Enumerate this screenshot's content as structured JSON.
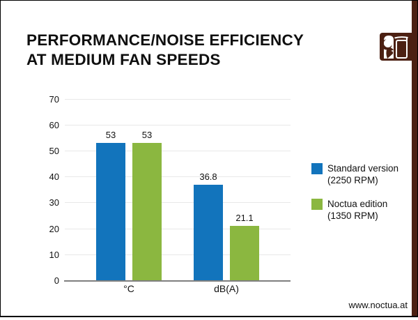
{
  "colors": {
    "brand_brown": "#4c2012",
    "bar_blue": "#1274bc",
    "bar_green": "#8bb740",
    "gridline": "#e8e8e8",
    "axis_line": "#7f7f7f"
  },
  "header": {
    "title_line1": "PERFORMANCE/NOISE EFFICIENCY",
    "title_line2": "AT MEDIUM FAN SPEEDS",
    "logo": "noctua-owl-logo"
  },
  "legend": {
    "items": [
      {
        "line1": "Standard version",
        "line2": "(2250 RPM)",
        "color": "#1274bc"
      },
      {
        "line1": "Noctua edition",
        "line2": "(1350 RPM)",
        "color": "#8bb740"
      }
    ]
  },
  "footer": {
    "website": "www.noctua.at"
  },
  "chart_data": {
    "type": "bar",
    "title": "PERFORMANCE/NOISE EFFICIENCY AT MEDIUM FAN SPEEDS",
    "categories": [
      "°C",
      "dB(A)"
    ],
    "series": [
      {
        "name": "Standard version (2250 RPM)",
        "color": "#1274bc",
        "values": [
          53,
          36.8
        ]
      },
      {
        "name": "Noctua edition (1350 RPM)",
        "color": "#8bb740",
        "values": [
          53,
          21.1
        ]
      }
    ],
    "data_labels": [
      [
        "53",
        "36.8"
      ],
      [
        "53",
        "21.1"
      ]
    ],
    "xlabel": "",
    "ylabel": "",
    "ylim": [
      0,
      70
    ],
    "yticks": [
      0,
      10,
      20,
      30,
      40,
      50,
      60,
      70
    ],
    "grid": true,
    "legend_position": "right"
  }
}
